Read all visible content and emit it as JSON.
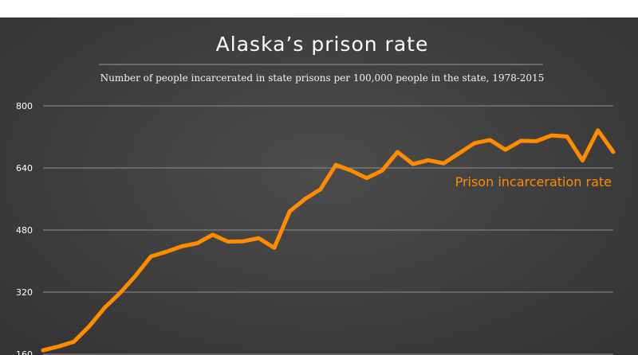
{
  "chart_data": {
    "type": "line",
    "title": "Alaska’s prison rate",
    "subtitle": "Number of people incarcerated in state prisons per 100,000 people in the state, 1978-2015",
    "xlabel": "",
    "ylabel": "",
    "xlim": [
      1978,
      2015
    ],
    "ylim": [
      160,
      800
    ],
    "yticks": [
      800,
      640,
      480,
      320,
      160
    ],
    "grid": true,
    "series": [
      {
        "name": "Prison incarceration rate",
        "color": "#ff8c00",
        "x": [
          1978,
          1979,
          1980,
          1981,
          1982,
          1983,
          1984,
          1985,
          1986,
          1987,
          1988,
          1989,
          1990,
          1991,
          1992,
          1993,
          1994,
          1995,
          1996,
          1997,
          1998,
          1999,
          2000,
          2001,
          2002,
          2003,
          2004,
          2005,
          2006,
          2007,
          2008,
          2009,
          2010,
          2011,
          2012,
          2013,
          2014,
          2015
        ],
        "values": [
          170,
          180,
          192,
          232,
          280,
          318,
          362,
          412,
          424,
          438,
          446,
          468,
          450,
          451,
          459,
          434,
          528,
          560,
          585,
          648,
          633,
          614,
          633,
          681,
          650,
          660,
          652,
          678,
          704,
          712,
          687,
          710,
          709,
          724,
          721,
          659,
          737,
          681
        ]
      }
    ]
  }
}
